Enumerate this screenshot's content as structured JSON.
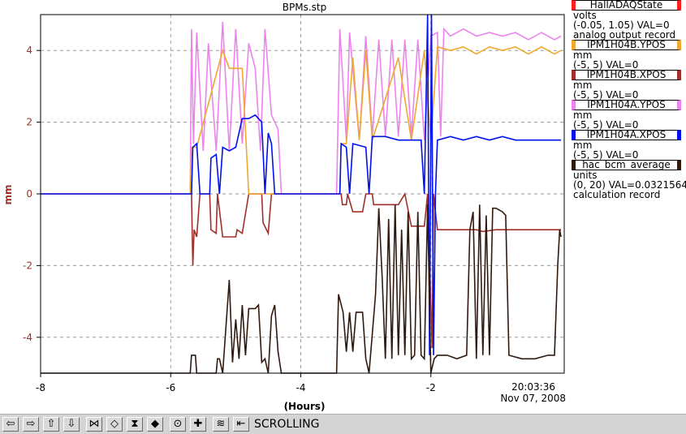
{
  "chart_data": {
    "type": "line",
    "title": "BPMs.stp",
    "xlabel": "(Hours)",
    "ylabel": "mm",
    "xlim": [
      -8.0,
      0.05
    ],
    "ylim": [
      -5,
      5
    ],
    "xticks": [
      -8,
      -6,
      -4,
      -2
    ],
    "xtick_labels": [
      "-8",
      "-6",
      "-4",
      "-2"
    ],
    "yticks": [
      -4,
      -2,
      0,
      2,
      4
    ],
    "ytick_labels": [
      "-4",
      "-2",
      "0",
      "2",
      "4"
    ],
    "grid": true,
    "legend_position": "right",
    "timestamp": [
      "20:03:36",
      "Nov 07, 2008"
    ],
    "series": [
      {
        "name": "IPM1H04B.XPOS",
        "color": "#a0302a",
        "points": [
          [
            -8,
            0
          ],
          [
            -5.68,
            0
          ],
          [
            -5.66,
            -2
          ],
          [
            -5.64,
            -1
          ],
          [
            -5.6,
            -1.2
          ],
          [
            -5.55,
            0
          ],
          [
            -5.4,
            0
          ],
          [
            -5.38,
            -1
          ],
          [
            -5.3,
            -1.1
          ],
          [
            -5.28,
            0
          ],
          [
            -5.2,
            -1.2
          ],
          [
            -5.0,
            -1.2
          ],
          [
            -4.98,
            -1
          ],
          [
            -4.9,
            -1.1
          ],
          [
            -4.8,
            0
          ],
          [
            -4.6,
            0
          ],
          [
            -4.58,
            -0.8
          ],
          [
            -4.5,
            -1.1
          ],
          [
            -4.45,
            0
          ],
          [
            -4.3,
            0
          ],
          [
            -3.38,
            0
          ],
          [
            -3.36,
            -0.3
          ],
          [
            -3.3,
            -0.3
          ],
          [
            -3.28,
            0
          ],
          [
            -3.2,
            -0.5
          ],
          [
            -3.05,
            -0.5
          ],
          [
            -3.0,
            0
          ],
          [
            -2.9,
            0
          ],
          [
            -2.88,
            -0.3
          ],
          [
            -2.5,
            -0.3
          ],
          [
            -2.4,
            0
          ],
          [
            -2.3,
            -0.9
          ],
          [
            -2.1,
            -0.9
          ],
          [
            -2.05,
            0
          ],
          [
            -1.98,
            -4.3
          ],
          [
            -1.96,
            0
          ],
          [
            -1.9,
            -1.0
          ],
          [
            -1.5,
            -1.0
          ],
          [
            -1.45,
            -1.0
          ],
          [
            -1.3,
            -1.0
          ],
          [
            -1.2,
            -1.05
          ],
          [
            -1.0,
            -1.0
          ],
          [
            -0.7,
            -1.0
          ],
          [
            -0.4,
            -1.0
          ],
          [
            -0.2,
            -1.0
          ],
          [
            -0.1,
            -1.0
          ],
          [
            0,
            -1.0
          ]
        ]
      },
      {
        "name": "IPM1H04A.YPOS",
        "color": "#ee82ee",
        "points": [
          [
            -8,
            0
          ],
          [
            -5.7,
            0
          ],
          [
            -5.68,
            4.6
          ],
          [
            -5.65,
            1.4
          ],
          [
            -5.6,
            4.5
          ],
          [
            -5.5,
            1.2
          ],
          [
            -5.42,
            4.2
          ],
          [
            -5.3,
            1.2
          ],
          [
            -5.2,
            4.8
          ],
          [
            -5.1,
            1.2
          ],
          [
            -5.0,
            4.6
          ],
          [
            -4.9,
            1.4
          ],
          [
            -4.8,
            4.2
          ],
          [
            -4.7,
            3.5
          ],
          [
            -4.62,
            1.2
          ],
          [
            -4.55,
            4.6
          ],
          [
            -4.45,
            2.2
          ],
          [
            -4.35,
            1.8
          ],
          [
            -4.3,
            0
          ],
          [
            -3.45,
            0
          ],
          [
            -3.4,
            4.6
          ],
          [
            -3.3,
            1.5
          ],
          [
            -3.25,
            4.5
          ],
          [
            -3.1,
            1.5
          ],
          [
            -3.0,
            4.4
          ],
          [
            -2.9,
            1.6
          ],
          [
            -2.8,
            4.3
          ],
          [
            -2.7,
            1.6
          ],
          [
            -2.6,
            4.3
          ],
          [
            -2.5,
            1.6
          ],
          [
            -2.4,
            4.3
          ],
          [
            -2.3,
            1.6
          ],
          [
            -2.2,
            4.3
          ],
          [
            -2.1,
            1.5
          ],
          [
            -2.0,
            4.4
          ],
          [
            -1.9,
            4.5
          ],
          [
            -1.85,
            1.6
          ],
          [
            -1.8,
            4.6
          ],
          [
            -1.7,
            4.4
          ],
          [
            -1.6,
            4.5
          ],
          [
            -1.5,
            4.6
          ],
          [
            -1.3,
            4.4
          ],
          [
            -1.1,
            4.5
          ],
          [
            -0.9,
            4.4
          ],
          [
            -0.7,
            4.5
          ],
          [
            -0.5,
            4.3
          ],
          [
            -0.3,
            4.5
          ],
          [
            -0.1,
            4.3
          ],
          [
            0,
            4.4
          ]
        ]
      },
      {
        "name": "IPM1H04B.YPOS",
        "color": "#f0a830",
        "points": [
          [
            -8,
            0
          ],
          [
            -5.7,
            0
          ],
          [
            -5.68,
            1.3
          ],
          [
            -5.6,
            1.3
          ],
          [
            -5.2,
            4.0
          ],
          [
            -5.1,
            3.5
          ],
          [
            -4.9,
            3.5
          ],
          [
            -4.8,
            0
          ],
          [
            -4.3,
            0
          ],
          [
            -3.4,
            0
          ],
          [
            -3.38,
            1.4
          ],
          [
            -3.3,
            1.4
          ],
          [
            -3.2,
            3.8
          ],
          [
            -3.1,
            1.5
          ],
          [
            -3.0,
            4.0
          ],
          [
            -2.9,
            1.5
          ],
          [
            -2.5,
            3.8
          ],
          [
            -2.3,
            1.5
          ],
          [
            -2.1,
            4.0
          ],
          [
            -2.0,
            1.5
          ],
          [
            -1.9,
            4.1
          ],
          [
            -1.7,
            4.0
          ],
          [
            -1.5,
            4.1
          ],
          [
            -1.3,
            3.9
          ],
          [
            -1.1,
            4.1
          ],
          [
            -0.9,
            4.0
          ],
          [
            -0.7,
            4.1
          ],
          [
            -0.5,
            3.9
          ],
          [
            -0.3,
            4.1
          ],
          [
            -0.1,
            3.9
          ],
          [
            0,
            4.0
          ]
        ]
      },
      {
        "name": "IPM1H04A.XPOS",
        "color": "#0010f0",
        "points": [
          [
            -8,
            0
          ],
          [
            -5.68,
            0
          ],
          [
            -5.66,
            1.3
          ],
          [
            -5.6,
            1.4
          ],
          [
            -5.55,
            0
          ],
          [
            -5.4,
            0
          ],
          [
            -5.38,
            1.0
          ],
          [
            -5.3,
            1.1
          ],
          [
            -5.25,
            0
          ],
          [
            -5.2,
            1.3
          ],
          [
            -5.1,
            1.2
          ],
          [
            -5.0,
            1.3
          ],
          [
            -4.9,
            2.1
          ],
          [
            -4.8,
            2.1
          ],
          [
            -4.7,
            2.2
          ],
          [
            -4.6,
            2.0
          ],
          [
            -4.55,
            0
          ],
          [
            -4.5,
            1.7
          ],
          [
            -4.45,
            1.4
          ],
          [
            -4.4,
            0
          ],
          [
            -3.4,
            0
          ],
          [
            -3.38,
            1.4
          ],
          [
            -3.3,
            1.3
          ],
          [
            -3.25,
            0
          ],
          [
            -3.2,
            1.4
          ],
          [
            -3.0,
            1.3
          ],
          [
            -2.95,
            0
          ],
          [
            -2.9,
            1.6
          ],
          [
            -2.7,
            1.6
          ],
          [
            -2.5,
            1.5
          ],
          [
            -2.3,
            1.5
          ],
          [
            -2.15,
            1.5
          ],
          [
            -2.1,
            0
          ],
          [
            -2.05,
            5
          ],
          [
            -2.02,
            -4.5
          ],
          [
            -1.99,
            5
          ],
          [
            -1.96,
            -4.5
          ],
          [
            -1.93,
            0
          ],
          [
            -1.9,
            1.5
          ],
          [
            -1.7,
            1.6
          ],
          [
            -1.5,
            1.5
          ],
          [
            -1.3,
            1.6
          ],
          [
            -1.1,
            1.5
          ],
          [
            -0.9,
            1.6
          ],
          [
            -0.7,
            1.5
          ],
          [
            -0.5,
            1.5
          ],
          [
            -0.3,
            1.5
          ],
          [
            -0.1,
            1.5
          ],
          [
            0,
            1.5
          ]
        ]
      },
      {
        "name": "hac_bcm_average",
        "color": "#301a10",
        "points": [
          [
            -8,
            -5
          ],
          [
            -5.7,
            -5
          ],
          [
            -5.68,
            -4.5
          ],
          [
            -5.62,
            -4.5
          ],
          [
            -5.6,
            -5
          ],
          [
            -5.3,
            -5
          ],
          [
            -5.28,
            -4.6
          ],
          [
            -5.25,
            -4.6
          ],
          [
            -5.2,
            -5
          ],
          [
            -5.1,
            -2.4
          ],
          [
            -5.05,
            -4.7
          ],
          [
            -5.0,
            -3.5
          ],
          [
            -4.95,
            -4.6
          ],
          [
            -4.9,
            -3.1
          ],
          [
            -4.85,
            -4.5
          ],
          [
            -4.8,
            -3.2
          ],
          [
            -4.7,
            -3.2
          ],
          [
            -4.65,
            -3.1
          ],
          [
            -4.6,
            -4.7
          ],
          [
            -4.55,
            -4.6
          ],
          [
            -4.5,
            -5
          ],
          [
            -4.45,
            -3.4
          ],
          [
            -4.4,
            -3.1
          ],
          [
            -4.35,
            -4.4
          ],
          [
            -4.3,
            -5
          ],
          [
            -3.45,
            -5
          ],
          [
            -3.42,
            -2.8
          ],
          [
            -3.35,
            -3.3
          ],
          [
            -3.3,
            -4.4
          ],
          [
            -3.25,
            -3.3
          ],
          [
            -3.2,
            -4.4
          ],
          [
            -3.15,
            -3.3
          ],
          [
            -3.05,
            -3.3
          ],
          [
            -3.0,
            -4.6
          ],
          [
            -2.95,
            -5
          ],
          [
            -2.85,
            -2.8
          ],
          [
            -2.8,
            -0.4
          ],
          [
            -2.75,
            -2.3
          ],
          [
            -2.7,
            -4.6
          ],
          [
            -2.65,
            -0.7
          ],
          [
            -2.6,
            -4.6
          ],
          [
            -2.55,
            -0.3
          ],
          [
            -2.5,
            -4.5
          ],
          [
            -2.45,
            -1.0
          ],
          [
            -2.4,
            -4.5
          ],
          [
            -2.35,
            -0.5
          ],
          [
            -2.3,
            -4.6
          ],
          [
            -2.25,
            -4.5
          ],
          [
            -2.2,
            -0.5
          ],
          [
            -2.15,
            -4.5
          ],
          [
            -2.1,
            -4.6
          ],
          [
            -2.05,
            -0.3
          ],
          [
            -2.0,
            -5
          ],
          [
            -1.95,
            -4.6
          ],
          [
            -1.9,
            -4.5
          ],
          [
            -1.75,
            -4.5
          ],
          [
            -1.6,
            -4.6
          ],
          [
            -1.45,
            -4.5
          ],
          [
            -1.4,
            -1.0
          ],
          [
            -1.35,
            -0.5
          ],
          [
            -1.3,
            -4.6
          ],
          [
            -1.25,
            -0.3
          ],
          [
            -1.2,
            -4.5
          ],
          [
            -1.15,
            -0.6
          ],
          [
            -1.1,
            -4.5
          ],
          [
            -1.05,
            -0.4
          ],
          [
            -1.0,
            -0.4
          ],
          [
            -0.9,
            -0.5
          ],
          [
            -0.85,
            -0.6
          ],
          [
            -0.8,
            -4.5
          ],
          [
            -0.6,
            -4.6
          ],
          [
            -0.4,
            -4.6
          ],
          [
            -0.2,
            -4.5
          ],
          [
            -0.1,
            -4.5
          ],
          [
            -0.05,
            -2.0
          ],
          [
            -0.02,
            -1.0
          ],
          [
            0,
            -1.2
          ]
        ]
      }
    ]
  },
  "legend": [
    {
      "name": "HallADAQState",
      "color": "#ff2020",
      "lines": [
        "volts",
        "(-0.05, 1.05) VAL=0",
        "analog output record"
      ]
    },
    {
      "name": "IPM1H04B.YPOS",
      "color": "#f0a830",
      "lines": [
        "mm",
        "(-5, 5) VAL=0"
      ]
    },
    {
      "name": "IPM1H04B.XPOS",
      "color": "#a0302a",
      "lines": [
        "mm",
        "(-5, 5) VAL=0"
      ]
    },
    {
      "name": "IPM1H04A.YPOS",
      "color": "#ee82ee",
      "lines": [
        "mm",
        "(-5, 5) VAL=0"
      ]
    },
    {
      "name": "IPM1H04A.XPOS",
      "color": "#0010f0",
      "lines": [
        "mm",
        "(-5, 5) VAL=0"
      ]
    },
    {
      "name": "hac_bcm_average",
      "color": "#301a10",
      "lines": [
        "units",
        "(0, 20) VAL=0.0321564",
        "calculation record"
      ]
    }
  ],
  "toolbar": {
    "status": "SCROLLING",
    "buttons": [
      {
        "name": "pan-left-icon",
        "glyph": "⇦"
      },
      {
        "name": "pan-right-icon",
        "glyph": "⇨"
      },
      {
        "name": "pan-up-icon",
        "glyph": "⇧"
      },
      {
        "name": "pan-down-icon",
        "glyph": "⇩"
      },
      {
        "name": "zoom-in-x-icon",
        "glyph": "⋈"
      },
      {
        "name": "zoom-out-x-icon",
        "glyph": "◇"
      },
      {
        "name": "zoom-in-y-icon",
        "glyph": "⧗"
      },
      {
        "name": "zoom-out-y-icon",
        "glyph": "◆"
      },
      {
        "name": "autoscale-icon",
        "glyph": "⊙"
      },
      {
        "name": "add-icon",
        "glyph": "✚"
      },
      {
        "name": "style-icon",
        "glyph": "≋"
      },
      {
        "name": "scroll-toggle-icon",
        "glyph": "⇤"
      }
    ]
  }
}
